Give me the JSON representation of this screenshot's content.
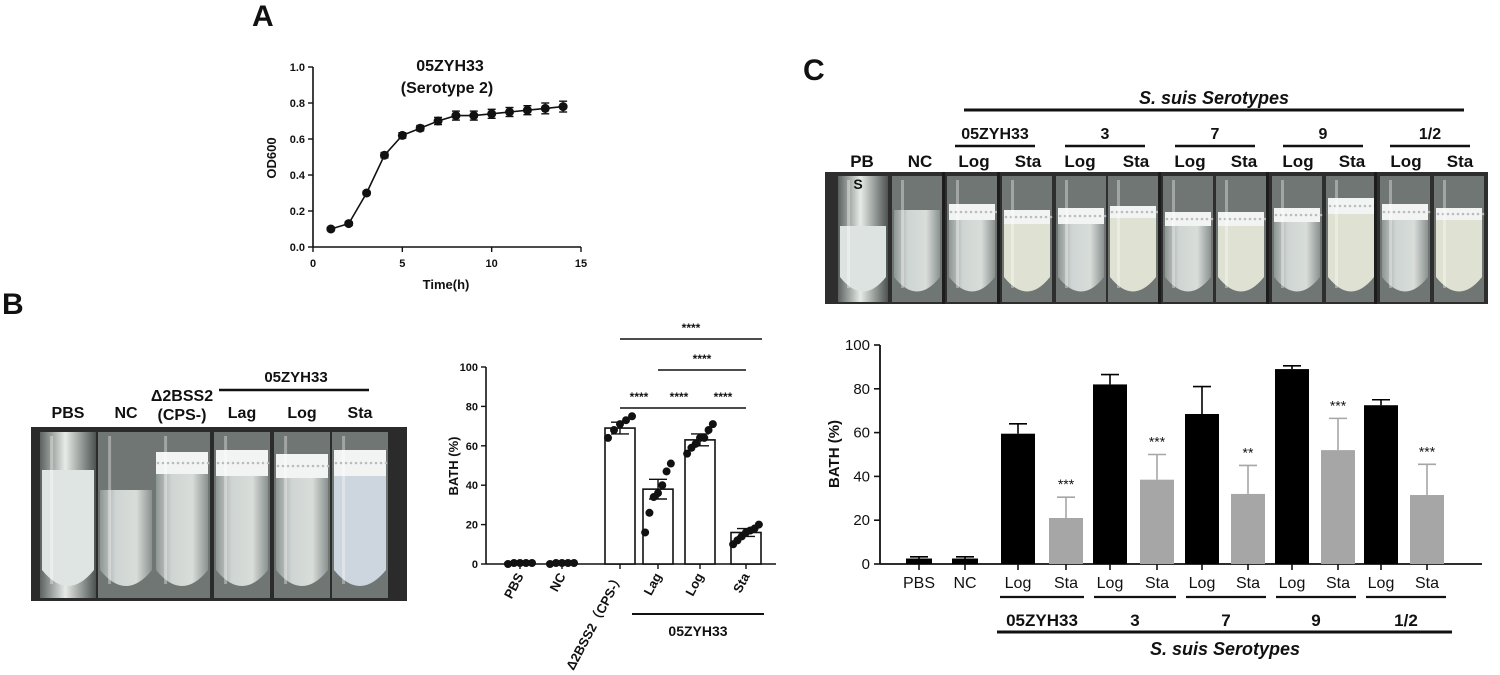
{
  "panels": {
    "a": "A",
    "b": "B",
    "c": "C"
  },
  "colors": {
    "bar_black": "#000000",
    "bar_gray": "#a6a6a6",
    "axis": "#111111"
  },
  "chart_data": [
    {
      "id": "A",
      "type": "line",
      "title": "05ZYH33",
      "subtitle": "(Serotype 2)",
      "xlabel": "Time(h)",
      "ylabel": "OD600",
      "xlim": [
        0,
        15
      ],
      "ylim": [
        0,
        1.0
      ],
      "xticks": [
        "0",
        "5",
        "10",
        "15"
      ],
      "yticks": [
        "0.0",
        "0.2",
        "0.4",
        "0.6",
        "0.8",
        "1.0"
      ],
      "x": [
        1,
        2,
        3,
        4,
        5,
        6,
        7,
        8,
        9,
        10,
        11,
        12,
        13,
        14
      ],
      "y": [
        0.1,
        0.13,
        0.3,
        0.51,
        0.62,
        0.66,
        0.7,
        0.73,
        0.73,
        0.74,
        0.75,
        0.76,
        0.77,
        0.78
      ],
      "err": [
        0.01,
        0.01,
        0.01,
        0.015,
        0.015,
        0.015,
        0.02,
        0.025,
        0.025,
        0.025,
        0.025,
        0.025,
        0.03,
        0.03
      ]
    },
    {
      "id": "B-photo",
      "type": "photo",
      "header": "05ZYH33",
      "tubes": [
        "PBS",
        "NC",
        "Δ2BSS2",
        "Lag",
        "Log",
        "Sta"
      ],
      "tube_sublabel": "(CPS-)"
    },
    {
      "id": "B",
      "type": "bar",
      "ylabel": "BATH (%)",
      "ylim": [
        0,
        100
      ],
      "yticks": [
        "0",
        "20",
        "40",
        "60",
        "80",
        "100"
      ],
      "categories": [
        "PBS",
        "NC",
        "Δ2BSS2（CPS-）",
        "Lag",
        "Log",
        "Sta"
      ],
      "group_label": "05ZYH33",
      "values": [
        0.5,
        0.5,
        69,
        38,
        63,
        16
      ],
      "err": [
        0.3,
        0.3,
        3,
        5,
        3,
        2
      ],
      "points": [
        [
          0,
          0.5,
          0.5,
          0.5,
          0.5
        ],
        [
          0,
          0.5,
          0.5,
          0.5,
          0.5
        ],
        [
          64,
          68,
          71,
          73,
          75
        ],
        [
          16,
          26,
          34,
          36,
          40,
          47,
          51
        ],
        [
          56,
          59,
          61,
          64,
          64,
          68,
          71
        ],
        [
          10,
          12,
          14,
          16,
          17,
          18,
          20
        ]
      ],
      "significance": [
        "****",
        "****",
        "****",
        "****",
        "****"
      ]
    },
    {
      "id": "C-photo",
      "type": "photo",
      "header": "S. suis Serotypes",
      "groups": [
        "05ZYH33",
        "3",
        "7",
        "9",
        "1/2"
      ],
      "tubes": [
        "PB",
        "NC",
        "Log",
        "Sta",
        "Log",
        "Sta",
        "Log",
        "Sta",
        "Log",
        "Sta",
        "Log",
        "Sta"
      ],
      "tube_sublabel": "S"
    },
    {
      "id": "C",
      "type": "bar",
      "ylabel": "BATH (%)",
      "ylim": [
        0,
        100
      ],
      "yticks": [
        "0",
        "20",
        "40",
        "60",
        "80",
        "100"
      ],
      "categories": [
        "PBS",
        "NC",
        "Log",
        "Sta",
        "Log",
        "Sta",
        "Log",
        "Sta",
        "Log",
        "Sta",
        "Log",
        "Sta"
      ],
      "groups": [
        "05ZYH33",
        "3",
        "7",
        "9",
        "1/2"
      ],
      "group_label": "S. suis Serotypes",
      "values": [
        2.5,
        2.5,
        59.5,
        21,
        82,
        38.5,
        68.5,
        32,
        89,
        52,
        72.5,
        31.5
      ],
      "err": [
        0.8,
        0.8,
        4.5,
        9.5,
        4.5,
        11.5,
        12.5,
        13,
        1.5,
        14.5,
        2.5,
        14
      ],
      "significance": [
        "",
        "",
        "",
        "***",
        "",
        "***",
        "",
        "**",
        "",
        "***",
        "",
        "***"
      ]
    }
  ]
}
